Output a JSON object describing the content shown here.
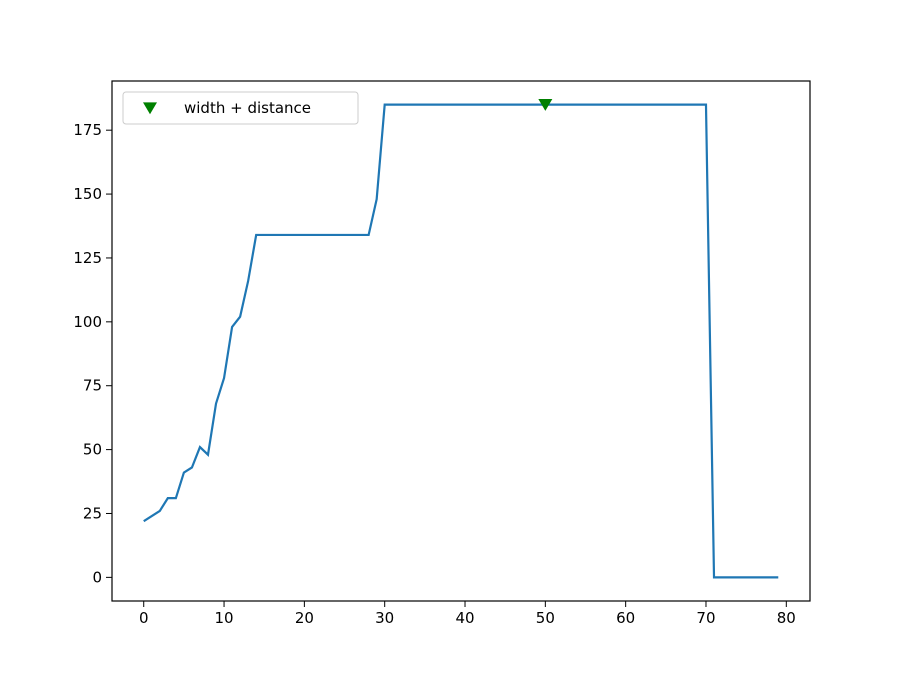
{
  "chart_data": {
    "type": "line",
    "series": [
      {
        "type": "line",
        "color": "#1f77b4",
        "x": [
          0,
          1,
          2,
          3,
          4,
          5,
          6,
          7,
          8,
          9,
          10,
          11,
          12,
          13,
          14,
          15,
          16,
          17,
          18,
          19,
          20,
          21,
          22,
          23,
          24,
          25,
          26,
          27,
          28,
          29,
          30,
          31,
          32,
          33,
          34,
          35,
          36,
          37,
          38,
          39,
          40,
          41,
          42,
          43,
          44,
          45,
          46,
          47,
          48,
          49,
          50,
          51,
          52,
          53,
          54,
          55,
          56,
          57,
          58,
          59,
          60,
          61,
          62,
          63,
          64,
          65,
          66,
          67,
          68,
          69,
          70,
          71,
          72,
          73,
          74,
          75,
          76,
          77,
          78,
          79
        ],
        "values": [
          22,
          24,
          26,
          31,
          31,
          41,
          43,
          51,
          48,
          68,
          78,
          98,
          102,
          116,
          134,
          134,
          134,
          134,
          134,
          134,
          134,
          134,
          134,
          134,
          134,
          134,
          134,
          134,
          134,
          148,
          185,
          185,
          185,
          185,
          185,
          185,
          185,
          185,
          185,
          185,
          185,
          185,
          185,
          185,
          185,
          185,
          185,
          185,
          185,
          185,
          185,
          185,
          185,
          185,
          185,
          185,
          185,
          185,
          185,
          185,
          185,
          185,
          185,
          185,
          185,
          185,
          185,
          185,
          185,
          185,
          185,
          0,
          0,
          0,
          0,
          0,
          0,
          0,
          0,
          0
        ]
      },
      {
        "type": "scatter",
        "name": "width + distance",
        "color": "#008000",
        "marker": "v",
        "x": [
          50
        ],
        "values": [
          185
        ]
      }
    ],
    "xlim": [
      -3.95,
      82.95
    ],
    "xticks": [
      0,
      10,
      20,
      30,
      40,
      50,
      60,
      70,
      80
    ],
    "ylim": [
      -9.25,
      194.25
    ],
    "yticks": [
      0,
      25,
      50,
      75,
      100,
      125,
      150,
      175
    ],
    "legend": "upper left"
  }
}
